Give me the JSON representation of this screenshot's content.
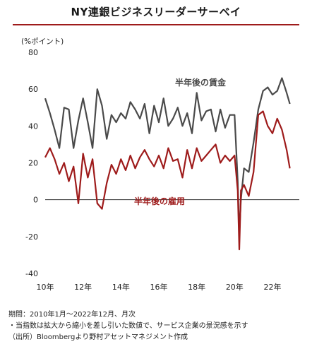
{
  "page_title": "NY連銀ビジネスリーダーサーベイ",
  "notes": {
    "period": "期間：2010年1月～2022年12月、月次",
    "definition": "・当指数は拡大から縮小を差し引いた数値で、サービス企業の景況感を示す",
    "source": "（出所）Bloombergより野村アセットマネジメント作成"
  },
  "colors": {
    "wage": "#4a4a4a",
    "employment": "#9e1b1b",
    "accent": "#9e1b1b"
  },
  "chart_data": {
    "type": "line",
    "title": "NY連銀ビジネスリーダーサーベイ",
    "ylabel": "(%ポイント)",
    "xlabel": "",
    "ylim": [
      -40,
      80
    ],
    "yticks": [
      -40,
      -20,
      0,
      20,
      40,
      60,
      80
    ],
    "xlim": [
      "2010-01",
      "2023-06"
    ],
    "xtick_labels": [
      "10年",
      "12年",
      "14年",
      "16年",
      "18年",
      "20年",
      "22年"
    ],
    "grid": false,
    "series": [
      {
        "name": "半年後の賃金",
        "label_text": "半年後の賃金",
        "color": "#4a4a4a",
        "x": [
          "2010-01",
          "2010-04",
          "2010-07",
          "2010-10",
          "2011-01",
          "2011-04",
          "2011-07",
          "2011-10",
          "2012-01",
          "2012-04",
          "2012-07",
          "2012-10",
          "2013-01",
          "2013-04",
          "2013-07",
          "2013-10",
          "2014-01",
          "2014-04",
          "2014-07",
          "2014-10",
          "2015-01",
          "2015-04",
          "2015-07",
          "2015-10",
          "2016-01",
          "2016-04",
          "2016-07",
          "2016-10",
          "2017-01",
          "2017-04",
          "2017-07",
          "2017-10",
          "2018-01",
          "2018-04",
          "2018-07",
          "2018-10",
          "2019-01",
          "2019-04",
          "2019-07",
          "2019-10",
          "2020-01",
          "2020-03",
          "2020-04",
          "2020-05",
          "2020-07",
          "2020-10",
          "2021-01",
          "2021-04",
          "2021-07",
          "2021-10",
          "2022-01",
          "2022-04",
          "2022-07",
          "2022-10",
          "2022-12"
        ],
        "values": [
          55,
          47,
          38,
          28,
          50,
          49,
          28,
          43,
          55,
          42,
          28,
          60,
          51,
          33,
          46,
          42,
          47,
          44,
          53,
          49,
          44,
          52,
          36,
          51,
          42,
          55,
          40,
          44,
          50,
          40,
          47,
          36,
          58,
          43,
          48,
          49,
          37,
          49,
          39,
          46,
          46,
          10,
          -19,
          0,
          17,
          15,
          31,
          49,
          59,
          61,
          57,
          59,
          66,
          58,
          52
        ]
      },
      {
        "name": "半年後の雇用",
        "label_text": "半年後の雇用",
        "color": "#9e1b1b",
        "x": [
          "2010-01",
          "2010-04",
          "2010-07",
          "2010-10",
          "2011-01",
          "2011-04",
          "2011-07",
          "2011-10",
          "2012-01",
          "2012-04",
          "2012-07",
          "2012-10",
          "2013-01",
          "2013-04",
          "2013-07",
          "2013-10",
          "2014-01",
          "2014-04",
          "2014-07",
          "2014-10",
          "2015-01",
          "2015-04",
          "2015-07",
          "2015-10",
          "2016-01",
          "2016-04",
          "2016-07",
          "2016-10",
          "2017-01",
          "2017-04",
          "2017-07",
          "2017-10",
          "2018-01",
          "2018-04",
          "2018-07",
          "2018-10",
          "2019-01",
          "2019-04",
          "2019-07",
          "2019-10",
          "2020-01",
          "2020-03",
          "2020-04",
          "2020-05",
          "2020-07",
          "2020-10",
          "2021-01",
          "2021-04",
          "2021-07",
          "2021-10",
          "2022-01",
          "2022-04",
          "2022-07",
          "2022-10",
          "2022-12"
        ],
        "values": [
          23,
          28,
          22,
          14,
          20,
          10,
          18,
          -2,
          25,
          12,
          22,
          -2,
          -5,
          9,
          19,
          14,
          22,
          16,
          24,
          17,
          23,
          27,
          22,
          18,
          24,
          17,
          28,
          21,
          22,
          12,
          27,
          17,
          28,
          21,
          24,
          27,
          30,
          20,
          24,
          21,
          24,
          5,
          -27,
          5,
          8,
          2,
          15,
          46,
          48,
          40,
          36,
          44,
          38,
          27,
          17
        ]
      }
    ]
  }
}
